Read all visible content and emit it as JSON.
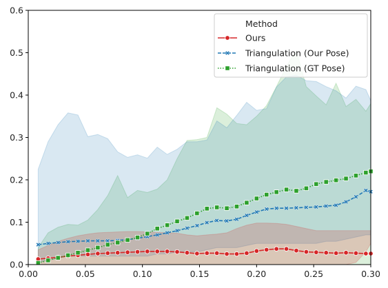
{
  "chart_data": {
    "type": "line",
    "xlim": [
      0,
      0.3
    ],
    "ylim": [
      0,
      0.6
    ],
    "x_ticks": [
      0.0,
      0.05,
      0.1,
      0.15,
      0.2,
      0.25,
      0.3
    ],
    "x_tick_labels": [
      "0.00",
      "0.05",
      "0.10",
      "0.15",
      "0.20",
      "0.25",
      "0.30"
    ],
    "y_ticks": [
      0.0,
      0.1,
      0.2,
      0.3,
      0.4,
      0.5,
      0.6
    ],
    "y_tick_labels": [
      "0.0",
      "0.1",
      "0.2",
      "0.3",
      "0.4",
      "0.5",
      "0.6"
    ],
    "legend": {
      "title": "Method",
      "placement": "top-right"
    },
    "grid": false,
    "x": [
      0.0087,
      0.0174,
      0.0261,
      0.0348,
      0.0435,
      0.0522,
      0.0609,
      0.0696,
      0.0783,
      0.087,
      0.0957,
      0.1043,
      0.113,
      0.1217,
      0.1304,
      0.1391,
      0.1478,
      0.1565,
      0.1652,
      0.1739,
      0.1826,
      0.1913,
      0.2,
      0.2087,
      0.2174,
      0.2261,
      0.2348,
      0.2435,
      0.2522,
      0.2609,
      0.2696,
      0.2783,
      0.287,
      0.2957,
      0.3
    ],
    "series": [
      {
        "name": "Ours",
        "color": "#d62728",
        "marker": "circle",
        "line_style": "solid",
        "values": [
          0.013,
          0.015,
          0.017,
          0.02,
          0.022,
          0.024,
          0.026,
          0.027,
          0.028,
          0.029,
          0.03,
          0.031,
          0.031,
          0.031,
          0.03,
          0.028,
          0.026,
          0.027,
          0.027,
          0.025,
          0.025,
          0.027,
          0.032,
          0.035,
          0.037,
          0.037,
          0.033,
          0.03,
          0.029,
          0.028,
          0.027,
          0.028,
          0.027,
          0.026,
          0.026
        ],
        "band_lower": [
          0.0,
          0.0,
          0.0,
          0.0,
          0.0,
          0.0,
          0.0,
          0.0,
          0.0,
          0.0,
          0.0,
          0.0,
          0.0,
          0.0,
          0.0,
          0.0,
          0.0,
          0.0,
          0.0,
          0.0,
          0.0,
          0.0,
          0.0,
          0.0,
          0.0,
          0.0,
          0.0,
          0.0,
          0.0,
          0.0,
          0.0,
          0.0,
          0.005,
          0.03,
          0.05
        ],
        "band_upper": [
          0.035,
          0.045,
          0.055,
          0.062,
          0.068,
          0.072,
          0.075,
          0.076,
          0.077,
          0.078,
          0.078,
          0.077,
          0.076,
          0.075,
          0.074,
          0.07,
          0.068,
          0.07,
          0.072,
          0.075,
          0.085,
          0.093,
          0.098,
          0.098,
          0.097,
          0.095,
          0.09,
          0.085,
          0.08,
          0.08,
          0.08,
          0.08,
          0.08,
          0.08,
          0.08
        ]
      },
      {
        "name": "Triangulation (Our Pose)",
        "color": "#1f77b4",
        "marker": "x",
        "line_style": "dashed",
        "values": [
          0.047,
          0.05,
          0.052,
          0.054,
          0.055,
          0.056,
          0.056,
          0.056,
          0.057,
          0.059,
          0.062,
          0.066,
          0.07,
          0.075,
          0.08,
          0.086,
          0.092,
          0.099,
          0.104,
          0.103,
          0.107,
          0.116,
          0.124,
          0.131,
          0.133,
          0.133,
          0.134,
          0.135,
          0.136,
          0.138,
          0.14,
          0.148,
          0.16,
          0.175,
          0.172
        ],
        "band_lower": [
          0.005,
          0.01,
          0.015,
          0.02,
          0.02,
          0.02,
          0.02,
          0.02,
          0.02,
          0.02,
          0.02,
          0.02,
          0.025,
          0.025,
          0.03,
          0.03,
          0.03,
          0.035,
          0.04,
          0.04,
          0.04,
          0.045,
          0.05,
          0.05,
          0.05,
          0.05,
          0.05,
          0.05,
          0.05,
          0.055,
          0.055,
          0.06,
          0.065,
          0.07,
          0.07
        ],
        "band_upper": [
          0.225,
          0.29,
          0.33,
          0.358,
          0.353,
          0.302,
          0.307,
          0.297,
          0.266,
          0.253,
          0.259,
          0.251,
          0.277,
          0.26,
          0.272,
          0.29,
          0.29,
          0.294,
          0.339,
          0.323,
          0.352,
          0.383,
          0.364,
          0.368,
          0.419,
          0.443,
          0.447,
          0.434,
          0.432,
          0.42,
          0.41,
          0.393,
          0.421,
          0.413,
          0.387
        ]
      },
      {
        "name": "Triangulation (GT Pose)",
        "color": "#2ca02c",
        "marker": "square",
        "line_style": "dotted",
        "values": [
          0.004,
          0.01,
          0.016,
          0.022,
          0.028,
          0.034,
          0.04,
          0.047,
          0.052,
          0.058,
          0.064,
          0.073,
          0.085,
          0.093,
          0.102,
          0.11,
          0.121,
          0.132,
          0.135,
          0.133,
          0.137,
          0.146,
          0.156,
          0.165,
          0.171,
          0.177,
          0.174,
          0.18,
          0.19,
          0.195,
          0.199,
          0.203,
          0.21,
          0.217,
          0.22
        ],
        "band_lower": [
          0.0,
          0.0,
          0.0,
          0.0,
          0.0,
          0.0,
          0.0,
          0.0,
          0.0,
          0.0,
          0.0,
          0.0,
          0.0,
          0.0,
          0.0,
          0.0,
          0.0,
          0.0,
          0.0,
          0.0,
          0.0,
          0.0,
          0.0,
          0.0,
          0.0,
          0.0,
          0.0,
          0.0,
          0.0,
          0.0,
          0.0,
          0.0,
          0.0,
          0.0,
          0.0
        ],
        "band_upper": [
          0.04,
          0.075,
          0.088,
          0.095,
          0.093,
          0.105,
          0.13,
          0.163,
          0.21,
          0.158,
          0.175,
          0.17,
          0.178,
          0.2,
          0.25,
          0.293,
          0.295,
          0.3,
          0.37,
          0.355,
          0.333,
          0.33,
          0.35,
          0.375,
          0.42,
          0.468,
          0.505,
          0.42,
          0.398,
          0.377,
          0.428,
          0.373,
          0.39,
          0.362,
          0.38
        ]
      }
    ]
  }
}
